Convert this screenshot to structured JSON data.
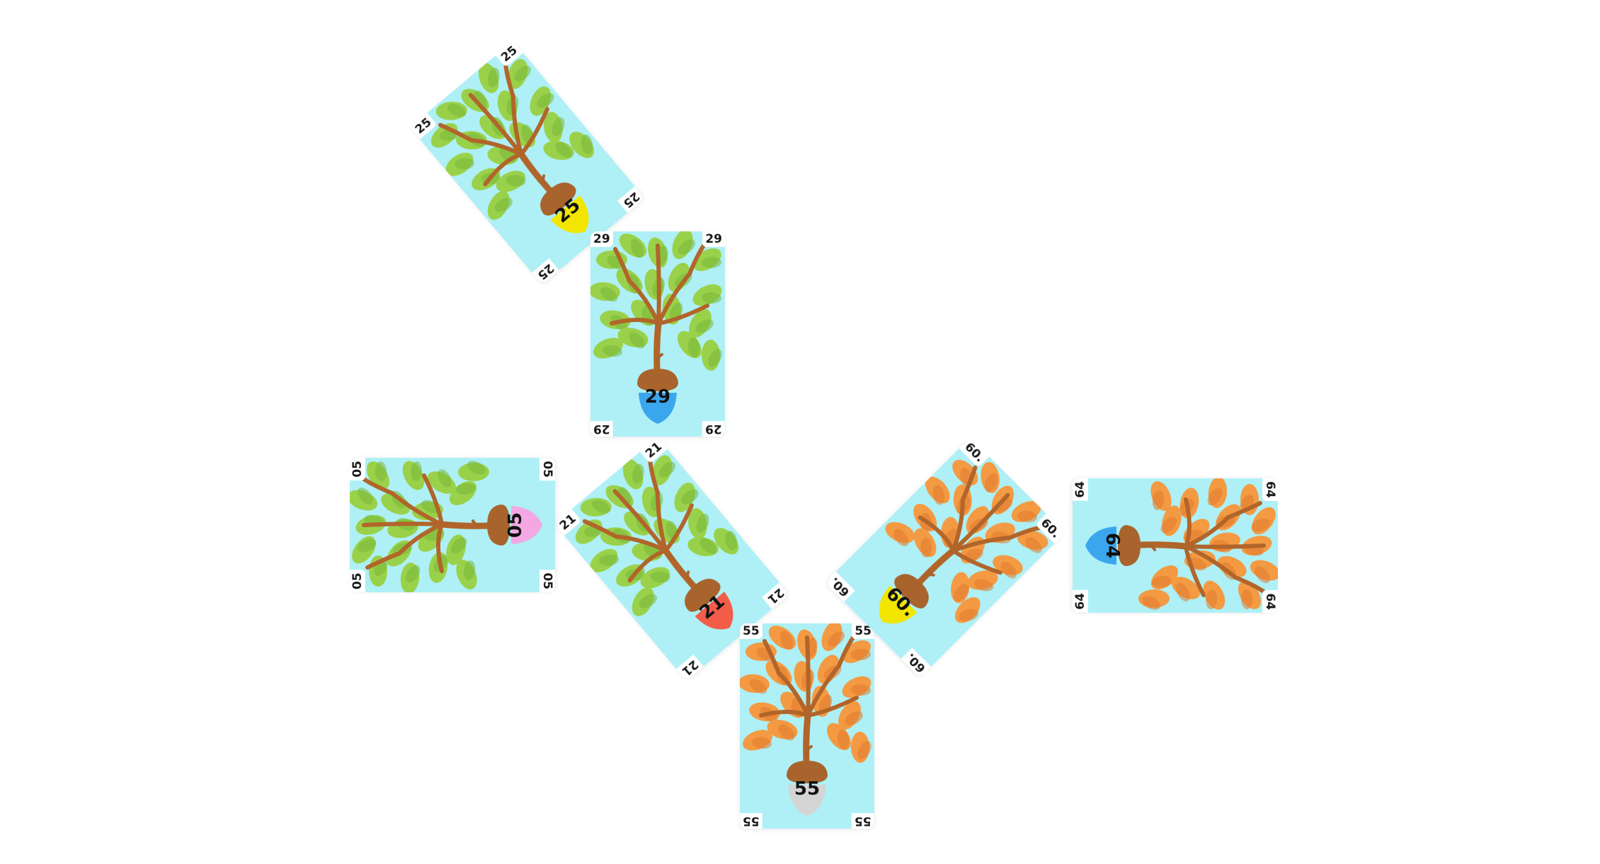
{
  "game": {
    "cards": [
      {
        "value": "25",
        "corner_label": "25",
        "cap_color": "#f2e600",
        "leaf_palette": "green"
      },
      {
        "value": "29",
        "corner_label": "29",
        "cap_color": "#3aa6ee",
        "leaf_palette": "green"
      },
      {
        "value": "05",
        "corner_label": "05",
        "cap_color": "#f3a8e3",
        "leaf_palette": "green"
      },
      {
        "value": "21",
        "corner_label": "21",
        "cap_color": "#f25c48",
        "leaf_palette": "green"
      },
      {
        "value": "55",
        "corner_label": "55",
        "cap_color": "#d4d4d4",
        "leaf_palette": "orange"
      },
      {
        "value": "60.",
        "corner_label": "60.",
        "cap_color": "#f2e600",
        "leaf_palette": "orange"
      },
      {
        "value": "64",
        "corner_label": "64",
        "cap_color": "#3aa6ee",
        "leaf_palette": "orange"
      }
    ],
    "colors": {
      "card_background": "#aef0f6",
      "branch": "#b1652a",
      "acorn_cap": "#a8642c",
      "leaf_green": "#9ad14a",
      "leaf_orange": "#f39a43"
    }
  }
}
